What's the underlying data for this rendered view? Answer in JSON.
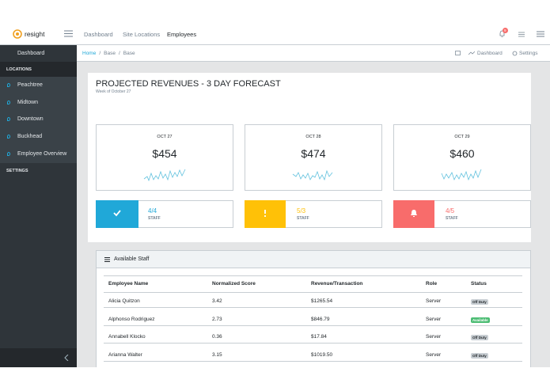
{
  "header": {
    "brand": "resight",
    "nav": [
      "Dashboard",
      "Site Locations",
      "Employees"
    ],
    "notification_count": "9"
  },
  "sidebar": {
    "dashboard": "Dashboard",
    "locations_heading": "LOCATIONS",
    "locations": [
      "Peachtree",
      "Midtown",
      "Downtown",
      "Buckhead",
      "Employee Overview"
    ],
    "settings_heading": "SETTINGS"
  },
  "breadcrumb": {
    "items": [
      "Home",
      "Base",
      "Base"
    ],
    "actions": [
      "Dashboard",
      "Settings"
    ]
  },
  "forecast": {
    "title": "PROJECTED REVENUES - 3 DAY FORECAST",
    "subtitle": "Week of October 27",
    "days": [
      {
        "date": "OCT 27",
        "amount": "$454"
      },
      {
        "date": "OCT 28",
        "amount": "$474"
      },
      {
        "date": "OCT 29",
        "amount": "$460"
      }
    ],
    "staff": [
      {
        "count": "4/4",
        "label": "STAFF",
        "color": "#20a8d8"
      },
      {
        "count": "5/3",
        "label": "STAFF",
        "color": "#ffc107"
      },
      {
        "count": "4/5",
        "label": "STAFF",
        "color": "#f86c6b"
      }
    ]
  },
  "table": {
    "title": "Available Staff",
    "headers": [
      "Employee Name",
      "Normalized Score",
      "Revenue/Transaction",
      "Role",
      "Status"
    ],
    "rows": [
      {
        "cells": [
          "Alicia Quitzon",
          "3.42",
          "$1265.54",
          "Server"
        ],
        "status": {
          "label": "Off Duty",
          "color": "#c8ced3"
        }
      },
      {
        "cells": [
          "Alphonso Rodriguez",
          "2.73",
          "$846.79",
          "Server"
        ],
        "status": {
          "label": "Available",
          "color": "#4dbd74"
        }
      },
      {
        "cells": [
          "Annabell Klocko",
          "0.36",
          "$17.84",
          "Server"
        ],
        "status": {
          "label": "Off Duty",
          "color": "#c8ced3"
        }
      },
      {
        "cells": [
          "Arianna Walter",
          "3.15",
          "$1019.50",
          "Server"
        ],
        "status": {
          "label": "Off Duty",
          "color": "#c8ced3"
        }
      }
    ]
  }
}
